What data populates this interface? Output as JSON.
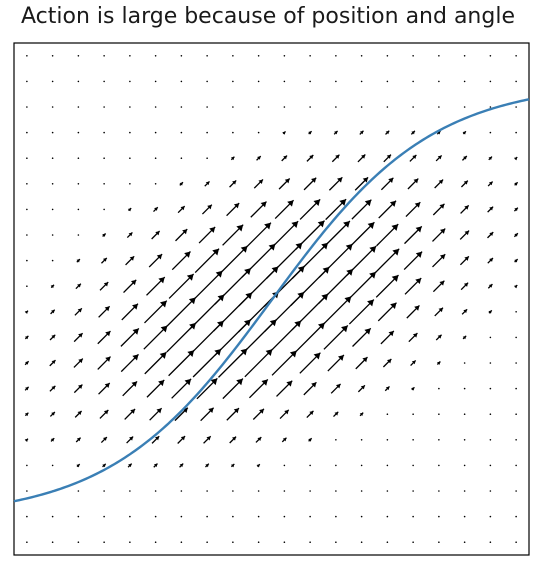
{
  "chart_data": {
    "type": "quiver",
    "title": "Action is large because of position and angle",
    "xlabel": "",
    "ylabel": "",
    "axes_visible": false,
    "grid": false,
    "xlim": [
      -1,
      1
    ],
    "ylim": [
      -1,
      1
    ],
    "vector_field": {
      "grid_size": 20,
      "direction": [
        1,
        1
      ],
      "magnitude_model": "gaussian band around the curve, centered in the plot",
      "color": "#000000"
    },
    "curve": {
      "shape": "sigmoid",
      "color": "#3a7fb5",
      "from": [
        -1,
        -0.79
      ],
      "to": [
        1,
        0.78
      ]
    }
  }
}
